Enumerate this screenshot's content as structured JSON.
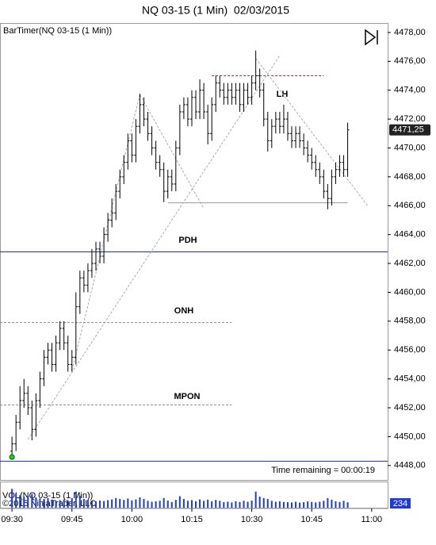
{
  "chart_data": {
    "type": "ohlc",
    "title": "NQ 03-15 (1 Min)  02/03/2015",
    "indicator_label": "BarTimer(NQ 03-15 (1 Min))",
    "time_remaining": "Time remaining = 00:00:19",
    "copyright": "©2015 NinjaTrader, LLC",
    "x": [
      "09:30",
      "09:31",
      "09:32",
      "09:33",
      "09:34",
      "09:35",
      "09:36",
      "09:37",
      "09:38",
      "09:39",
      "09:40",
      "09:41",
      "09:42",
      "09:43",
      "09:44",
      "09:45",
      "09:46",
      "09:47",
      "09:48",
      "09:49",
      "09:50",
      "09:51",
      "09:52",
      "09:53",
      "09:54",
      "09:55",
      "09:56",
      "09:57",
      "09:58",
      "09:59",
      "10:00",
      "10:01",
      "10:02",
      "10:03",
      "10:04",
      "10:05",
      "10:06",
      "10:07",
      "10:08",
      "10:09",
      "10:10",
      "10:11",
      "10:12",
      "10:13",
      "10:14",
      "10:15",
      "10:16",
      "10:17",
      "10:18",
      "10:19",
      "10:20",
      "10:21",
      "10:22",
      "10:23",
      "10:24",
      "10:25",
      "10:26",
      "10:27",
      "10:28",
      "10:29",
      "10:30",
      "10:31",
      "10:32",
      "10:33",
      "10:34",
      "10:35",
      "10:36",
      "10:37",
      "10:38",
      "10:39",
      "10:40",
      "10:41",
      "10:42",
      "10:43",
      "10:44",
      "10:45",
      "10:46",
      "10:47",
      "10:48",
      "10:49",
      "10:50",
      "10:51",
      "10:52",
      "10:53",
      "10:54"
    ],
    "open": [
      4449,
      4449.5,
      4451,
      4452.5,
      4453,
      4452,
      4450.5,
      4452.5,
      4454,
      4455.5,
      4456,
      4455,
      4456.5,
      4457.5,
      4456.5,
      4455,
      4455.5,
      4459,
      4461,
      4460.5,
      4461.5,
      4462,
      4463,
      4462.5,
      4464,
      4465,
      4465.5,
      4467,
      4468,
      4469,
      4470.5,
      4469.5,
      4471.5,
      4473,
      4472,
      4471,
      4470,
      4469,
      4468.5,
      4467,
      4468,
      4467.5,
      4470,
      4472.5,
      4473,
      4472,
      4473.5,
      4472.5,
      4474,
      4472.5,
      4471,
      4473,
      4474.5,
      4474,
      4473.5,
      4474,
      4473.5,
      4474,
      4473,
      4474,
      4473.5,
      4474.5,
      4475,
      4474,
      4472,
      4470.5,
      4471.5,
      4472,
      4471.5,
      4472,
      4471,
      4470.5,
      4471,
      4470.5,
      4470,
      4469.5,
      4469,
      4468.5,
      4468,
      4467,
      4466.5,
      4468,
      4468.5,
      4469,
      4468.5
    ],
    "high": [
      4450,
      4451.5,
      4453.5,
      4454,
      4453.5,
      4452.5,
      4453,
      4454.5,
      4456,
      4456.5,
      4456.5,
      4457,
      4458,
      4458,
      4457,
      4456,
      4460,
      4461.5,
      4461.5,
      4462,
      4463,
      4463.5,
      4463.5,
      4464.5,
      4465.5,
      4466.5,
      4467.5,
      4468.5,
      4469.5,
      4471,
      4471,
      4472,
      4473.75,
      4473.5,
      4472.5,
      4471.5,
      4470.5,
      4469.5,
      4469,
      4468.5,
      4468.5,
      4470.5,
      4473,
      4473.5,
      4473.5,
      4474,
      4474,
      4474.75,
      4474.5,
      4473,
      4473.5,
      4475,
      4475,
      4474.5,
      4474.5,
      4474.5,
      4474.5,
      4474.5,
      4474.5,
      4474.5,
      4475,
      4476.75,
      4475.5,
      4474.5,
      4472.5,
      4472,
      4472.5,
      4472.5,
      4473,
      4472.5,
      4471.5,
      4471.5,
      4471.5,
      4471,
      4470.5,
      4470,
      4469.5,
      4469,
      4468.5,
      4467.5,
      4468.5,
      4469,
      4469.5,
      4469.5,
      4471.75
    ],
    "low": [
      4448.75,
      4449,
      4450.5,
      4452,
      4451.5,
      4449.75,
      4450,
      4452,
      4453.5,
      4455,
      4454.5,
      4454.5,
      4456,
      4456,
      4454.5,
      4454.5,
      4455,
      4458.5,
      4460,
      4460,
      4461,
      4461.5,
      4462,
      4462,
      4463.5,
      4464.5,
      4465,
      4466.5,
      4467.5,
      4468.5,
      4469,
      4469,
      4471,
      4471.5,
      4470.5,
      4469.5,
      4468.5,
      4468,
      4466.25,
      4466.5,
      4467,
      4467,
      4469.5,
      4472,
      4471.5,
      4471.5,
      4472,
      4472,
      4472,
      4470.25,
      4470.5,
      4472.5,
      4473.5,
      4473,
      4473,
      4473,
      4473,
      4472.5,
      4472.5,
      4473,
      4473,
      4474,
      4473.5,
      4471.5,
      4469.75,
      4470,
      4471,
      4471,
      4471,
      4470.5,
      4470,
      4470,
      4470,
      4469.5,
      4469,
      4468.5,
      4468,
      4467.5,
      4466.5,
      4465.75,
      4466,
      4467.5,
      4468,
      4468,
      4468
    ],
    "close": [
      4449.5,
      4451,
      4452.5,
      4453,
      4452,
      4450.5,
      4452.5,
      4454,
      4455.5,
      4456,
      4455,
      4456.5,
      4457.5,
      4456.5,
      4455,
      4455.5,
      4459,
      4461,
      4460.5,
      4461.5,
      4462,
      4463,
      4462.5,
      4464,
      4465,
      4465.5,
      4467,
      4468,
      4469,
      4470.5,
      4469.5,
      4471.5,
      4473,
      4472,
      4471,
      4470,
      4469,
      4468.5,
      4467,
      4468,
      4467.5,
      4470,
      4472.5,
      4473,
      4472,
      4473.5,
      4472.5,
      4474,
      4472.5,
      4471,
      4473,
      4474.5,
      4474,
      4473.5,
      4474,
      4473.5,
      4474,
      4473,
      4474,
      4473.5,
      4474.5,
      4475,
      4474,
      4472,
      4470.5,
      4471.5,
      4472,
      4471.5,
      4472,
      4471,
      4470.5,
      4471,
      4470.5,
      4470,
      4469.5,
      4469,
      4468.5,
      4468,
      4467,
      4466.5,
      4468,
      4468.5,
      4469,
      4468.5,
      4471.25
    ],
    "color": "#000000",
    "xlim": [
      "09:27",
      "11:04"
    ],
    "xticks": [
      "09:30",
      "09:45",
      "10:00",
      "10:15",
      "10:30",
      "10:45",
      "11:00"
    ],
    "ylim": [
      4447,
      4478.6
    ],
    "yticks": [
      {
        "value": 4448,
        "label": "4448,00"
      },
      {
        "value": 4450,
        "label": "4450,00"
      },
      {
        "value": 4452,
        "label": "4452,00"
      },
      {
        "value": 4454,
        "label": "4454,00"
      },
      {
        "value": 4456,
        "label": "4456,00"
      },
      {
        "value": 4458,
        "label": "4458,00"
      },
      {
        "value": 4460,
        "label": "4460,00"
      },
      {
        "value": 4462,
        "label": "4462,00"
      },
      {
        "value": 4464,
        "label": "4464,00"
      },
      {
        "value": 4466,
        "label": "4466,00"
      },
      {
        "value": 4468,
        "label": "4468,00"
      },
      {
        "value": 4470,
        "label": "4470,00"
      },
      {
        "value": 4472,
        "label": "4472,00"
      },
      {
        "value": 4474,
        "label": "4474,00"
      },
      {
        "value": 4476,
        "label": "4476,00"
      },
      {
        "value": 4478,
        "label": "4478,00"
      }
    ],
    "last_price": {
      "value": 4471.25,
      "label": "4471,25"
    },
    "levels": [
      {
        "name": "PDH",
        "value": 4462.8,
        "color": "#1a2fbf",
        "dash": false,
        "x": [
          "09:27",
          "11:04"
        ]
      },
      {
        "name": "ONH",
        "value": 4457.9,
        "color": "#888888",
        "dash": true,
        "x": [
          "09:27",
          "10:25"
        ]
      },
      {
        "name": "MPON",
        "value": 4452.2,
        "color": "#888888",
        "dash": true,
        "x": [
          "09:27",
          "10:25"
        ]
      },
      {
        "value": 4448.3,
        "color": "#1a2fbf",
        "dash": false,
        "x": [
          "09:27",
          "11:04"
        ]
      },
      {
        "value": 4475,
        "color": "#c02020",
        "dash": true,
        "x": [
          "10:20",
          "10:48"
        ]
      },
      {
        "value": 4466.2,
        "color": "#999999",
        "dash": false,
        "x": [
          "10:09",
          "10:54"
        ]
      }
    ],
    "trendlines": [
      {
        "x": [
          "09:34",
          "10:37"
        ],
        "y": [
          4449.8,
          4476.4
        ]
      },
      {
        "x": [
          "09:45",
          "10:02"
        ],
        "y": [
          4454.6,
          4473.7
        ]
      },
      {
        "x": [
          "10:02",
          "10:18"
        ],
        "y": [
          4473.7,
          4465.8
        ]
      },
      {
        "x": [
          "10:31",
          "10:59"
        ],
        "y": [
          4476.2,
          4466.0
        ]
      }
    ],
    "annotation": "LH",
    "volume": {
      "name": "VOL(NQ 03-15 (1 Min))",
      "color": "#1e3ccf",
      "ylim": [
        0,
        1000
      ],
      "values": [
        820,
        610,
        540,
        480,
        520,
        600,
        450,
        400,
        380,
        420,
        350,
        300,
        330,
        360,
        310,
        420,
        700,
        520,
        380,
        340,
        300,
        280,
        310,
        290,
        330,
        360,
        420,
        380,
        340,
        400,
        320,
        360,
        450,
        380,
        300,
        260,
        280,
        300,
        420,
        310,
        250,
        340,
        500,
        380,
        300,
        330,
        280,
        360,
        300,
        350,
        280,
        340,
        300,
        240,
        260,
        230,
        280,
        250,
        300,
        260,
        310,
        700,
        480,
        420,
        380,
        300,
        260,
        280,
        250,
        240,
        230,
        260,
        220,
        240,
        270,
        250,
        230,
        260,
        300,
        420,
        350,
        280,
        250,
        300,
        234
      ]
    }
  }
}
